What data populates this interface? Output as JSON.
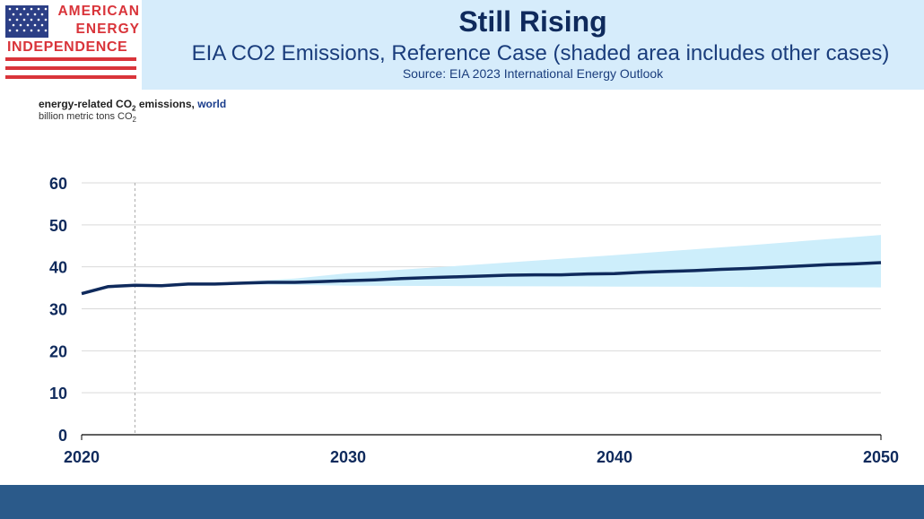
{
  "logo": {
    "line1": "AMERICAN",
    "line2": "ENERGY",
    "line3": "INDEPENDENCE"
  },
  "header": {
    "title": "Still Rising",
    "subtitle": "EIA CO2 Emissions, Reference Case (shaded area includes other cases)",
    "source": "Source: EIA 2023 International Energy Outlook"
  },
  "chart_label": {
    "title_prefix": "energy-related CO",
    "title_sub": "2",
    "title_suffix": " emissions, ",
    "title_region": "world",
    "units_prefix": "billion  metric tons CO",
    "units_sub": "2"
  },
  "colors": {
    "line": "#0f2a5c",
    "band": "#cdeefb",
    "footer": "#2b5a8a"
  },
  "chart_data": {
    "type": "line",
    "title": "energy-related CO2 emissions, world",
    "ylabel": "billion metric tons CO2",
    "xlim": [
      2020,
      2050
    ],
    "ylim": [
      0,
      60
    ],
    "yticks": [
      0,
      10,
      20,
      30,
      40,
      50,
      60
    ],
    "xticks": [
      2020,
      2030,
      2040,
      2050
    ],
    "history_divider": 2022,
    "series": [
      {
        "name": "Reference case",
        "x": [
          2020,
          2021,
          2022,
          2023,
          2024,
          2025,
          2026,
          2027,
          2028,
          2029,
          2030,
          2031,
          2032,
          2033,
          2034,
          2035,
          2036,
          2037,
          2038,
          2039,
          2040,
          2041,
          2042,
          2043,
          2044,
          2045,
          2046,
          2047,
          2048,
          2049,
          2050
        ],
        "values": [
          33.6,
          35.3,
          35.6,
          35.5,
          35.9,
          35.9,
          36.1,
          36.3,
          36.3,
          36.5,
          36.7,
          36.9,
          37.2,
          37.4,
          37.6,
          37.8,
          38.0,
          38.1,
          38.1,
          38.3,
          38.4,
          38.7,
          38.9,
          39.1,
          39.4,
          39.6,
          39.9,
          40.2,
          40.5,
          40.7,
          41.0
        ]
      }
    ],
    "range_band": {
      "name": "Other cases",
      "x": [
        2022,
        2025,
        2028,
        2030,
        2035,
        2040,
        2045,
        2050
      ],
      "upper": [
        35.6,
        36.1,
        37.2,
        38.5,
        40.6,
        42.8,
        45.1,
        47.6
      ],
      "lower": [
        35.6,
        35.8,
        35.7,
        35.5,
        35.4,
        35.3,
        35.2,
        35.1
      ]
    }
  }
}
